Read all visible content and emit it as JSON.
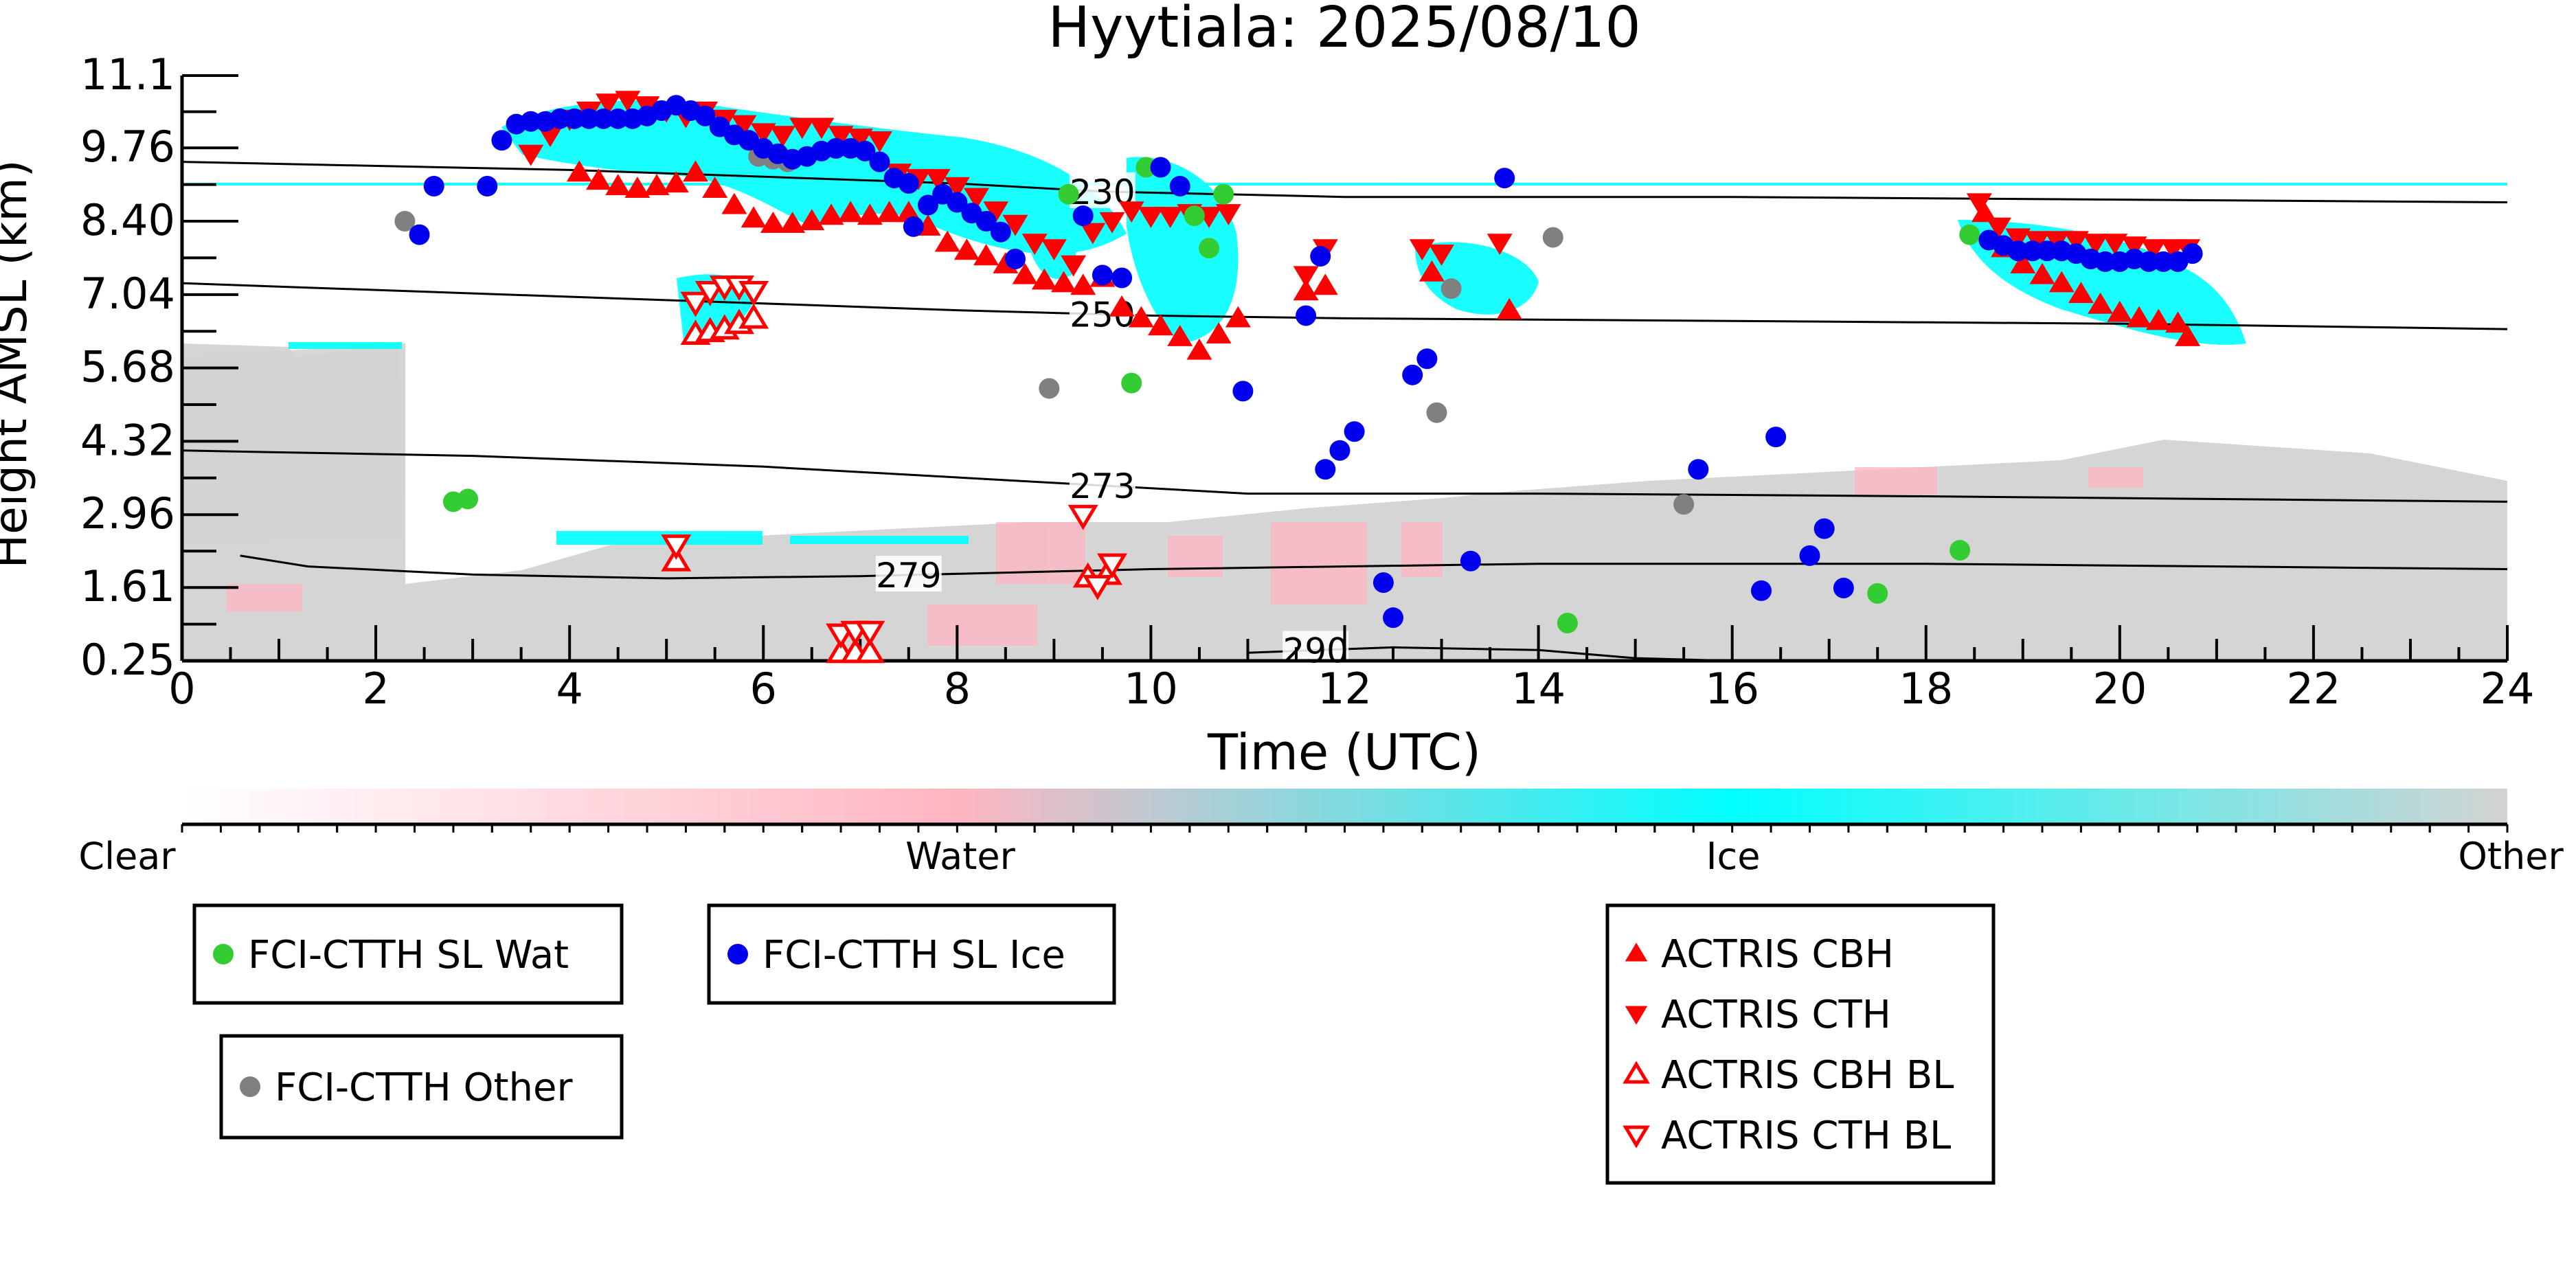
{
  "chart_data": {
    "type": "scatter",
    "title": "Hyytiala: 2025/08/10",
    "xlabel": "Time (UTC)",
    "ylabel": "Height AMSL (km)",
    "xlim": [
      0,
      24
    ],
    "ylim": [
      0.25,
      11.1
    ],
    "x_ticks": [
      "0",
      "2",
      "4",
      "6",
      "8",
      "10",
      "12",
      "14",
      "16",
      "18",
      "20",
      "22",
      "24"
    ],
    "y_ticks": [
      "0.25",
      "1.61",
      "2.96",
      "4.32",
      "5.68",
      "7.04",
      "8.40",
      "9.76",
      "11.1"
    ],
    "y_tick_values": [
      0.25,
      1.61,
      2.96,
      4.32,
      5.68,
      7.04,
      8.4,
      9.76,
      11.1
    ],
    "grid": false,
    "colorbar": {
      "labels": [
        "Clear",
        "Water",
        "Ice",
        "Other"
      ],
      "colors": [
        "#ffffff",
        "#ffb6c1",
        "#00ffff",
        "#d3d3d3"
      ]
    },
    "contours": [
      {
        "label": "230",
        "label_x": 9.5,
        "points": [
          [
            0,
            9.5
          ],
          [
            4,
            9.35
          ],
          [
            8,
            9.1
          ],
          [
            9.5,
            8.95
          ],
          [
            12,
            8.85
          ],
          [
            16,
            8.85
          ],
          [
            20,
            8.8
          ],
          [
            24,
            8.75
          ]
        ]
      },
      {
        "label": "250",
        "label_x": 9.5,
        "points": [
          [
            0,
            7.25
          ],
          [
            4,
            7.0
          ],
          [
            8,
            6.75
          ],
          [
            10,
            6.65
          ],
          [
            12,
            6.6
          ],
          [
            16,
            6.55
          ],
          [
            20,
            6.5
          ],
          [
            24,
            6.4
          ]
        ]
      },
      {
        "label": "273",
        "label_x": 9.5,
        "points": [
          [
            0,
            4.15
          ],
          [
            3,
            4.05
          ],
          [
            6,
            3.85
          ],
          [
            9,
            3.55
          ],
          [
            11,
            3.35
          ],
          [
            14,
            3.35
          ],
          [
            18,
            3.3
          ],
          [
            24,
            3.2
          ]
        ]
      },
      {
        "label": "279",
        "label_x": 7.5,
        "points": [
          [
            0.6,
            2.2
          ],
          [
            1.3,
            2.0
          ],
          [
            3,
            1.85
          ],
          [
            5,
            1.78
          ],
          [
            7,
            1.82
          ],
          [
            10,
            1.95
          ],
          [
            14,
            2.05
          ],
          [
            18,
            2.05
          ],
          [
            24,
            1.95
          ]
        ]
      },
      {
        "label": "290",
        "label_x": 11.7,
        "points": [
          [
            11,
            0.4
          ],
          [
            12.5,
            0.5
          ],
          [
            14,
            0.45
          ],
          [
            15,
            0.3
          ],
          [
            16,
            0.25
          ]
        ]
      }
    ],
    "series": [
      {
        "name": "FCI-CTTH SL Wat",
        "marker": "circle",
        "color": "#33cc33",
        "points": [
          [
            2.8,
            3.2
          ],
          [
            2.95,
            3.25
          ],
          [
            9.15,
            8.9
          ],
          [
            9.8,
            5.4
          ],
          [
            9.95,
            9.4
          ],
          [
            10.45,
            8.5
          ],
          [
            10.6,
            7.9
          ],
          [
            10.75,
            8.9
          ],
          [
            14.3,
            0.95
          ],
          [
            17.5,
            1.5
          ],
          [
            18.35,
            2.3
          ],
          [
            18.45,
            8.15
          ]
        ]
      },
      {
        "name": "FCI-CTTH SL Ice",
        "marker": "circle",
        "color": "#0000ee",
        "points": [
          [
            2.45,
            8.15
          ],
          [
            2.6,
            9.05
          ],
          [
            3.15,
            9.05
          ],
          [
            3.3,
            9.9
          ],
          [
            3.45,
            10.2
          ],
          [
            3.6,
            10.25
          ],
          [
            3.75,
            10.25
          ],
          [
            3.9,
            10.3
          ],
          [
            4.05,
            10.3
          ],
          [
            4.2,
            10.3
          ],
          [
            4.35,
            10.3
          ],
          [
            4.5,
            10.3
          ],
          [
            4.65,
            10.3
          ],
          [
            4.8,
            10.35
          ],
          [
            4.95,
            10.45
          ],
          [
            5.1,
            10.55
          ],
          [
            5.25,
            10.45
          ],
          [
            5.4,
            10.35
          ],
          [
            5.55,
            10.15
          ],
          [
            5.7,
            10.0
          ],
          [
            5.85,
            9.9
          ],
          [
            6.0,
            9.75
          ],
          [
            6.15,
            9.65
          ],
          [
            6.3,
            9.55
          ],
          [
            6.45,
            9.6
          ],
          [
            6.6,
            9.7
          ],
          [
            6.75,
            9.75
          ],
          [
            6.9,
            9.75
          ],
          [
            7.05,
            9.7
          ],
          [
            7.2,
            9.5
          ],
          [
            7.35,
            9.2
          ],
          [
            7.55,
            8.3
          ],
          [
            7.5,
            9.1
          ],
          [
            7.7,
            8.7
          ],
          [
            7.85,
            8.9
          ],
          [
            8.0,
            8.75
          ],
          [
            8.15,
            8.55
          ],
          [
            8.3,
            8.4
          ],
          [
            8.45,
            8.2
          ],
          [
            8.6,
            7.7
          ],
          [
            9.3,
            8.5
          ],
          [
            9.5,
            7.4
          ],
          [
            9.7,
            7.35
          ],
          [
            10.1,
            9.4
          ],
          [
            10.3,
            9.05
          ],
          [
            10.95,
            5.25
          ],
          [
            11.6,
            6.65
          ],
          [
            11.75,
            7.75
          ],
          [
            11.8,
            3.8
          ],
          [
            11.95,
            4.15
          ],
          [
            12.1,
            4.5
          ],
          [
            12.4,
            1.7
          ],
          [
            12.5,
            1.05
          ],
          [
            12.7,
            5.55
          ],
          [
            12.85,
            5.85
          ],
          [
            13.3,
            2.1
          ],
          [
            13.65,
            9.2
          ],
          [
            15.65,
            3.8
          ],
          [
            16.3,
            1.55
          ],
          [
            16.45,
            4.4
          ],
          [
            16.8,
            2.2
          ],
          [
            16.95,
            2.7
          ],
          [
            17.15,
            1.6
          ],
          [
            18.65,
            8.05
          ],
          [
            18.8,
            7.95
          ],
          [
            18.95,
            7.85
          ],
          [
            19.1,
            7.85
          ],
          [
            19.25,
            7.85
          ],
          [
            19.4,
            7.85
          ],
          [
            19.55,
            7.8
          ],
          [
            19.7,
            7.7
          ],
          [
            19.85,
            7.65
          ],
          [
            20.0,
            7.65
          ],
          [
            20.15,
            7.7
          ],
          [
            20.3,
            7.65
          ],
          [
            20.45,
            7.65
          ],
          [
            20.6,
            7.65
          ],
          [
            20.75,
            7.8
          ]
        ]
      },
      {
        "name": "FCI-CTTH Other",
        "marker": "circle",
        "color": "#808080",
        "points": [
          [
            2.3,
            8.4
          ],
          [
            5.95,
            9.6
          ],
          [
            6.1,
            9.55
          ],
          [
            6.25,
            9.5
          ],
          [
            8.95,
            5.3
          ],
          [
            12.95,
            4.85
          ],
          [
            13.1,
            7.15
          ],
          [
            14.15,
            8.1
          ],
          [
            15.5,
            3.15
          ]
        ]
      },
      {
        "name": "ACTRIS CBH",
        "marker": "triangle-up",
        "color": "#ff0000",
        "filled": true,
        "points": [
          [
            4.1,
            9.3
          ],
          [
            4.3,
            9.15
          ],
          [
            4.5,
            9.05
          ],
          [
            4.7,
            9.0
          ],
          [
            4.9,
            9.05
          ],
          [
            5.1,
            9.1
          ],
          [
            5.3,
            9.3
          ],
          [
            5.5,
            9.0
          ],
          [
            5.7,
            8.7
          ],
          [
            5.9,
            8.45
          ],
          [
            6.1,
            8.35
          ],
          [
            6.3,
            8.35
          ],
          [
            6.5,
            8.4
          ],
          [
            6.7,
            8.5
          ],
          [
            6.9,
            8.55
          ],
          [
            7.1,
            8.5
          ],
          [
            7.3,
            8.55
          ],
          [
            7.5,
            8.55
          ],
          [
            7.7,
            8.3
          ],
          [
            7.9,
            8.0
          ],
          [
            8.1,
            7.85
          ],
          [
            8.3,
            7.75
          ],
          [
            8.5,
            7.6
          ],
          [
            8.7,
            7.4
          ],
          [
            8.9,
            7.3
          ],
          [
            9.1,
            7.25
          ],
          [
            9.3,
            7.2
          ],
          [
            9.5,
            7.35
          ],
          [
            9.7,
            6.8
          ],
          [
            9.9,
            6.6
          ],
          [
            10.1,
            6.45
          ],
          [
            10.3,
            6.25
          ],
          [
            10.5,
            6.0
          ],
          [
            10.7,
            6.3
          ],
          [
            10.9,
            6.6
          ],
          [
            11.6,
            7.1
          ],
          [
            11.8,
            7.2
          ],
          [
            12.9,
            7.45
          ],
          [
            13.7,
            6.75
          ],
          [
            18.6,
            8.55
          ],
          [
            18.8,
            7.9
          ],
          [
            19.0,
            7.6
          ],
          [
            19.2,
            7.4
          ],
          [
            19.4,
            7.25
          ],
          [
            19.6,
            7.05
          ],
          [
            19.8,
            6.85
          ],
          [
            20.0,
            6.7
          ],
          [
            20.2,
            6.6
          ],
          [
            20.4,
            6.55
          ],
          [
            20.6,
            6.5
          ],
          [
            20.7,
            6.25
          ]
        ]
      },
      {
        "name": "ACTRIS CTH",
        "marker": "triangle-down",
        "color": "#ff0000",
        "filled": true,
        "points": [
          [
            3.6,
            9.65
          ],
          [
            3.8,
            10.0
          ],
          [
            4.0,
            10.3
          ],
          [
            4.2,
            10.45
          ],
          [
            4.4,
            10.6
          ],
          [
            4.6,
            10.65
          ],
          [
            4.8,
            10.55
          ],
          [
            5.0,
            10.45
          ],
          [
            5.2,
            10.35
          ],
          [
            5.4,
            10.45
          ],
          [
            5.6,
            10.3
          ],
          [
            5.8,
            10.2
          ],
          [
            6.0,
            10.05
          ],
          [
            6.2,
            10.0
          ],
          [
            6.4,
            10.15
          ],
          [
            6.6,
            10.15
          ],
          [
            6.8,
            10.0
          ],
          [
            7.0,
            9.95
          ],
          [
            7.2,
            9.9
          ],
          [
            7.4,
            9.3
          ],
          [
            7.6,
            9.2
          ],
          [
            7.8,
            9.2
          ],
          [
            8.0,
            9.05
          ],
          [
            8.2,
            8.85
          ],
          [
            8.4,
            8.6
          ],
          [
            8.6,
            8.35
          ],
          [
            8.8,
            8.0
          ],
          [
            9.0,
            7.9
          ],
          [
            9.2,
            7.6
          ],
          [
            9.4,
            8.2
          ],
          [
            9.6,
            8.4
          ],
          [
            9.8,
            8.6
          ],
          [
            10.0,
            8.5
          ],
          [
            10.2,
            8.5
          ],
          [
            10.4,
            8.55
          ],
          [
            10.6,
            8.5
          ],
          [
            10.8,
            8.55
          ],
          [
            11.6,
            7.4
          ],
          [
            11.8,
            7.9
          ],
          [
            12.8,
            7.9
          ],
          [
            13.0,
            7.8
          ],
          [
            13.6,
            8.0
          ],
          [
            18.55,
            8.75
          ],
          [
            18.75,
            8.3
          ],
          [
            18.95,
            8.1
          ],
          [
            19.15,
            8.05
          ],
          [
            19.35,
            8.05
          ],
          [
            19.55,
            8.05
          ],
          [
            19.75,
            8.0
          ],
          [
            19.95,
            8.0
          ],
          [
            20.15,
            7.95
          ],
          [
            20.35,
            7.9
          ],
          [
            20.55,
            7.9
          ],
          [
            20.7,
            7.9
          ]
        ]
      },
      {
        "name": "ACTRIS CBH BL",
        "marker": "triangle-up",
        "color": "#ff0000",
        "filled": false,
        "points": [
          [
            5.1,
            2.1
          ],
          [
            5.3,
            6.3
          ],
          [
            5.45,
            6.35
          ],
          [
            5.6,
            6.4
          ],
          [
            5.75,
            6.5
          ],
          [
            5.9,
            6.6
          ],
          [
            9.35,
            1.8
          ],
          [
            9.55,
            1.85
          ],
          [
            6.8,
            0.4
          ],
          [
            6.95,
            0.4
          ],
          [
            7.1,
            0.4
          ]
        ]
      },
      {
        "name": "ACTRIS CTH BL",
        "marker": "triangle-down",
        "color": "#ff0000",
        "filled": false,
        "points": [
          [
            5.1,
            2.4
          ],
          [
            5.3,
            6.9
          ],
          [
            5.45,
            7.1
          ],
          [
            5.6,
            7.2
          ],
          [
            5.75,
            7.2
          ],
          [
            5.9,
            7.1
          ],
          [
            9.3,
            2.95
          ],
          [
            9.45,
            1.65
          ],
          [
            9.6,
            2.05
          ],
          [
            6.8,
            0.75
          ],
          [
            6.95,
            0.8
          ],
          [
            7.1,
            0.8
          ]
        ]
      }
    ],
    "legend_groups": [
      [
        "FCI-CTTH SL Wat"
      ],
      [
        "FCI-CTTH SL Ice"
      ],
      [
        "FCI-CTTH Other"
      ],
      [
        "ACTRIS CBH",
        "ACTRIS CTH",
        "ACTRIS CBH BL",
        "ACTRIS CTH BL"
      ]
    ]
  }
}
